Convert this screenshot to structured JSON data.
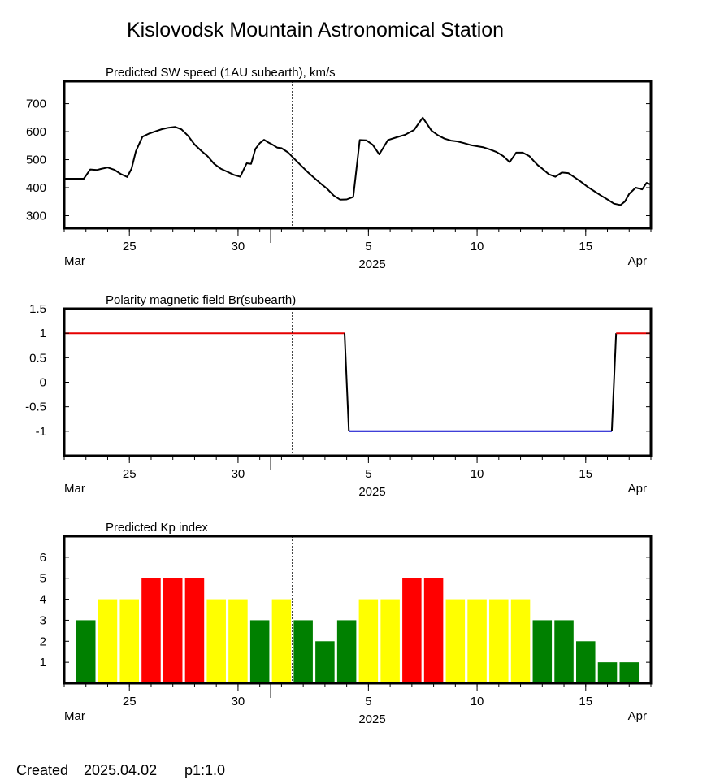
{
  "page": {
    "title": "Kislovodsk Mountain Astronomical Station",
    "footer": {
      "created_label": "Created",
      "created_date": "2025.04.02",
      "version": "p1:1.0"
    }
  },
  "axis_common": {
    "day_ticks": [
      "25",
      "30",
      "5",
      "10",
      "15"
    ],
    "day_tick_days": [
      3,
      8,
      14,
      19,
      24
    ],
    "month_left": "Mar",
    "month_right": "Apr",
    "year": "2025",
    "x_range_days": [
      0.0,
      27.0
    ],
    "marker_day": 10.5,
    "month_boundary_day": 9.5
  },
  "chart_data": [
    {
      "type": "line",
      "title": "Predicted SW speed (1AU subearth), km/s",
      "xlabel": "",
      "ylabel": "",
      "ylim": [
        255,
        780
      ],
      "yticks": [
        "300",
        "400",
        "500",
        "600",
        "700"
      ],
      "ytick_values": [
        300,
        400,
        500,
        600,
        700
      ],
      "color": "#000000",
      "series": [
        {
          "x": [
            0.0,
            0.6,
            0.9,
            1.2,
            1.5,
            1.7,
            2.0,
            2.3,
            2.6,
            2.9,
            3.1,
            3.3,
            3.6,
            3.9,
            4.2,
            4.5,
            4.8,
            5.1,
            5.4,
            5.7,
            6.0,
            6.3,
            6.6,
            6.9,
            7.2,
            7.5,
            7.8,
            8.1,
            8.4,
            8.6,
            8.8,
            9.0,
            9.2,
            9.4,
            9.6,
            9.8,
            10.0,
            10.3,
            10.6,
            10.9,
            11.2,
            11.5,
            11.8,
            12.1,
            12.4,
            12.7,
            13.0,
            13.3,
            13.6,
            13.9,
            14.2,
            14.5,
            14.9,
            15.3,
            15.7,
            16.1,
            16.5,
            16.9,
            17.2,
            17.5,
            17.8,
            18.1,
            18.4,
            18.7,
            19.0,
            19.3,
            19.6,
            19.9,
            20.2,
            20.5,
            20.8,
            21.1,
            21.4,
            21.6,
            21.8,
            22.0,
            22.3,
            22.6,
            22.9,
            23.2,
            23.5,
            23.8,
            24.1,
            24.4,
            24.7,
            25.0,
            25.3,
            25.6,
            25.8,
            26.0,
            26.3,
            26.6,
            26.8,
            27.0
          ],
          "y": [
            432,
            432,
            432,
            465,
            463,
            467,
            472,
            464,
            449,
            438,
            468,
            530,
            582,
            593,
            601,
            609,
            614,
            617,
            608,
            585,
            554,
            532,
            512,
            485,
            468,
            457,
            446,
            439,
            487,
            485,
            538,
            559,
            571,
            561,
            553,
            543,
            541,
            526,
            502,
            479,
            456,
            435,
            415,
            396,
            372,
            357,
            358,
            367,
            570,
            569,
            553,
            519,
            570,
            580,
            589,
            606,
            650,
            604,
            587,
            575,
            568,
            565,
            559,
            552,
            548,
            544,
            536,
            527,
            513,
            491,
            525,
            525,
            513,
            496,
            480,
            468,
            448,
            439,
            454,
            452,
            436,
            420,
            402,
            387,
            372,
            358,
            343,
            338,
            350,
            378,
            400,
            394,
            417,
            411
          ]
        }
      ]
    },
    {
      "type": "line",
      "title": "Polarity magnetic field  Br(subearth)",
      "xlabel": "",
      "ylabel": "",
      "ylim": [
        -1.5,
        1.5
      ],
      "yticks": [
        "1.5",
        "1",
        "0.5",
        "0",
        "-0.5",
        "-1"
      ],
      "ytick_values": [
        1.5,
        1,
        0.5,
        0,
        -0.5,
        -1
      ],
      "series": [
        {
          "name_color": "positive",
          "color": "#e60000",
          "x": [
            0.0,
            12.9
          ],
          "y": [
            1,
            1
          ]
        },
        {
          "name_color": "transition",
          "color": "#000000",
          "x": [
            12.9,
            13.1
          ],
          "y": [
            1,
            -1
          ]
        },
        {
          "name_color": "negative",
          "color": "#0000cc",
          "x": [
            13.1,
            25.2
          ],
          "y": [
            -1,
            -1
          ]
        },
        {
          "name_color": "transition",
          "color": "#000000",
          "x": [
            25.2,
            25.4
          ],
          "y": [
            -1,
            1
          ]
        },
        {
          "name_color": "positive",
          "color": "#e60000",
          "x": [
            25.4,
            27.0
          ],
          "y": [
            1,
            1
          ]
        }
      ]
    },
    {
      "type": "bar",
      "title": "Predicted Kp index",
      "xlabel": "",
      "ylabel": "",
      "ylim": [
        0,
        7
      ],
      "yticks": [
        "1",
        "2",
        "3",
        "4",
        "5",
        "6"
      ],
      "ytick_values": [
        1,
        2,
        3,
        4,
        5,
        6
      ],
      "bar_colors": {
        "low": "#008000",
        "moderate": "#ffff00",
        "high": "#ff0000"
      },
      "x": [
        1,
        2,
        3,
        4,
        5,
        6,
        7,
        8,
        9,
        10,
        11,
        12,
        13,
        14,
        15,
        16,
        17,
        18,
        19,
        20,
        21,
        22,
        23,
        24,
        25,
        26
      ],
      "values": [
        3,
        4,
        4,
        5,
        5,
        5,
        4,
        4,
        3,
        4,
        3,
        2,
        3,
        4,
        4,
        5,
        5,
        4,
        4,
        4,
        4,
        3,
        3,
        2,
        1,
        1
      ]
    }
  ]
}
